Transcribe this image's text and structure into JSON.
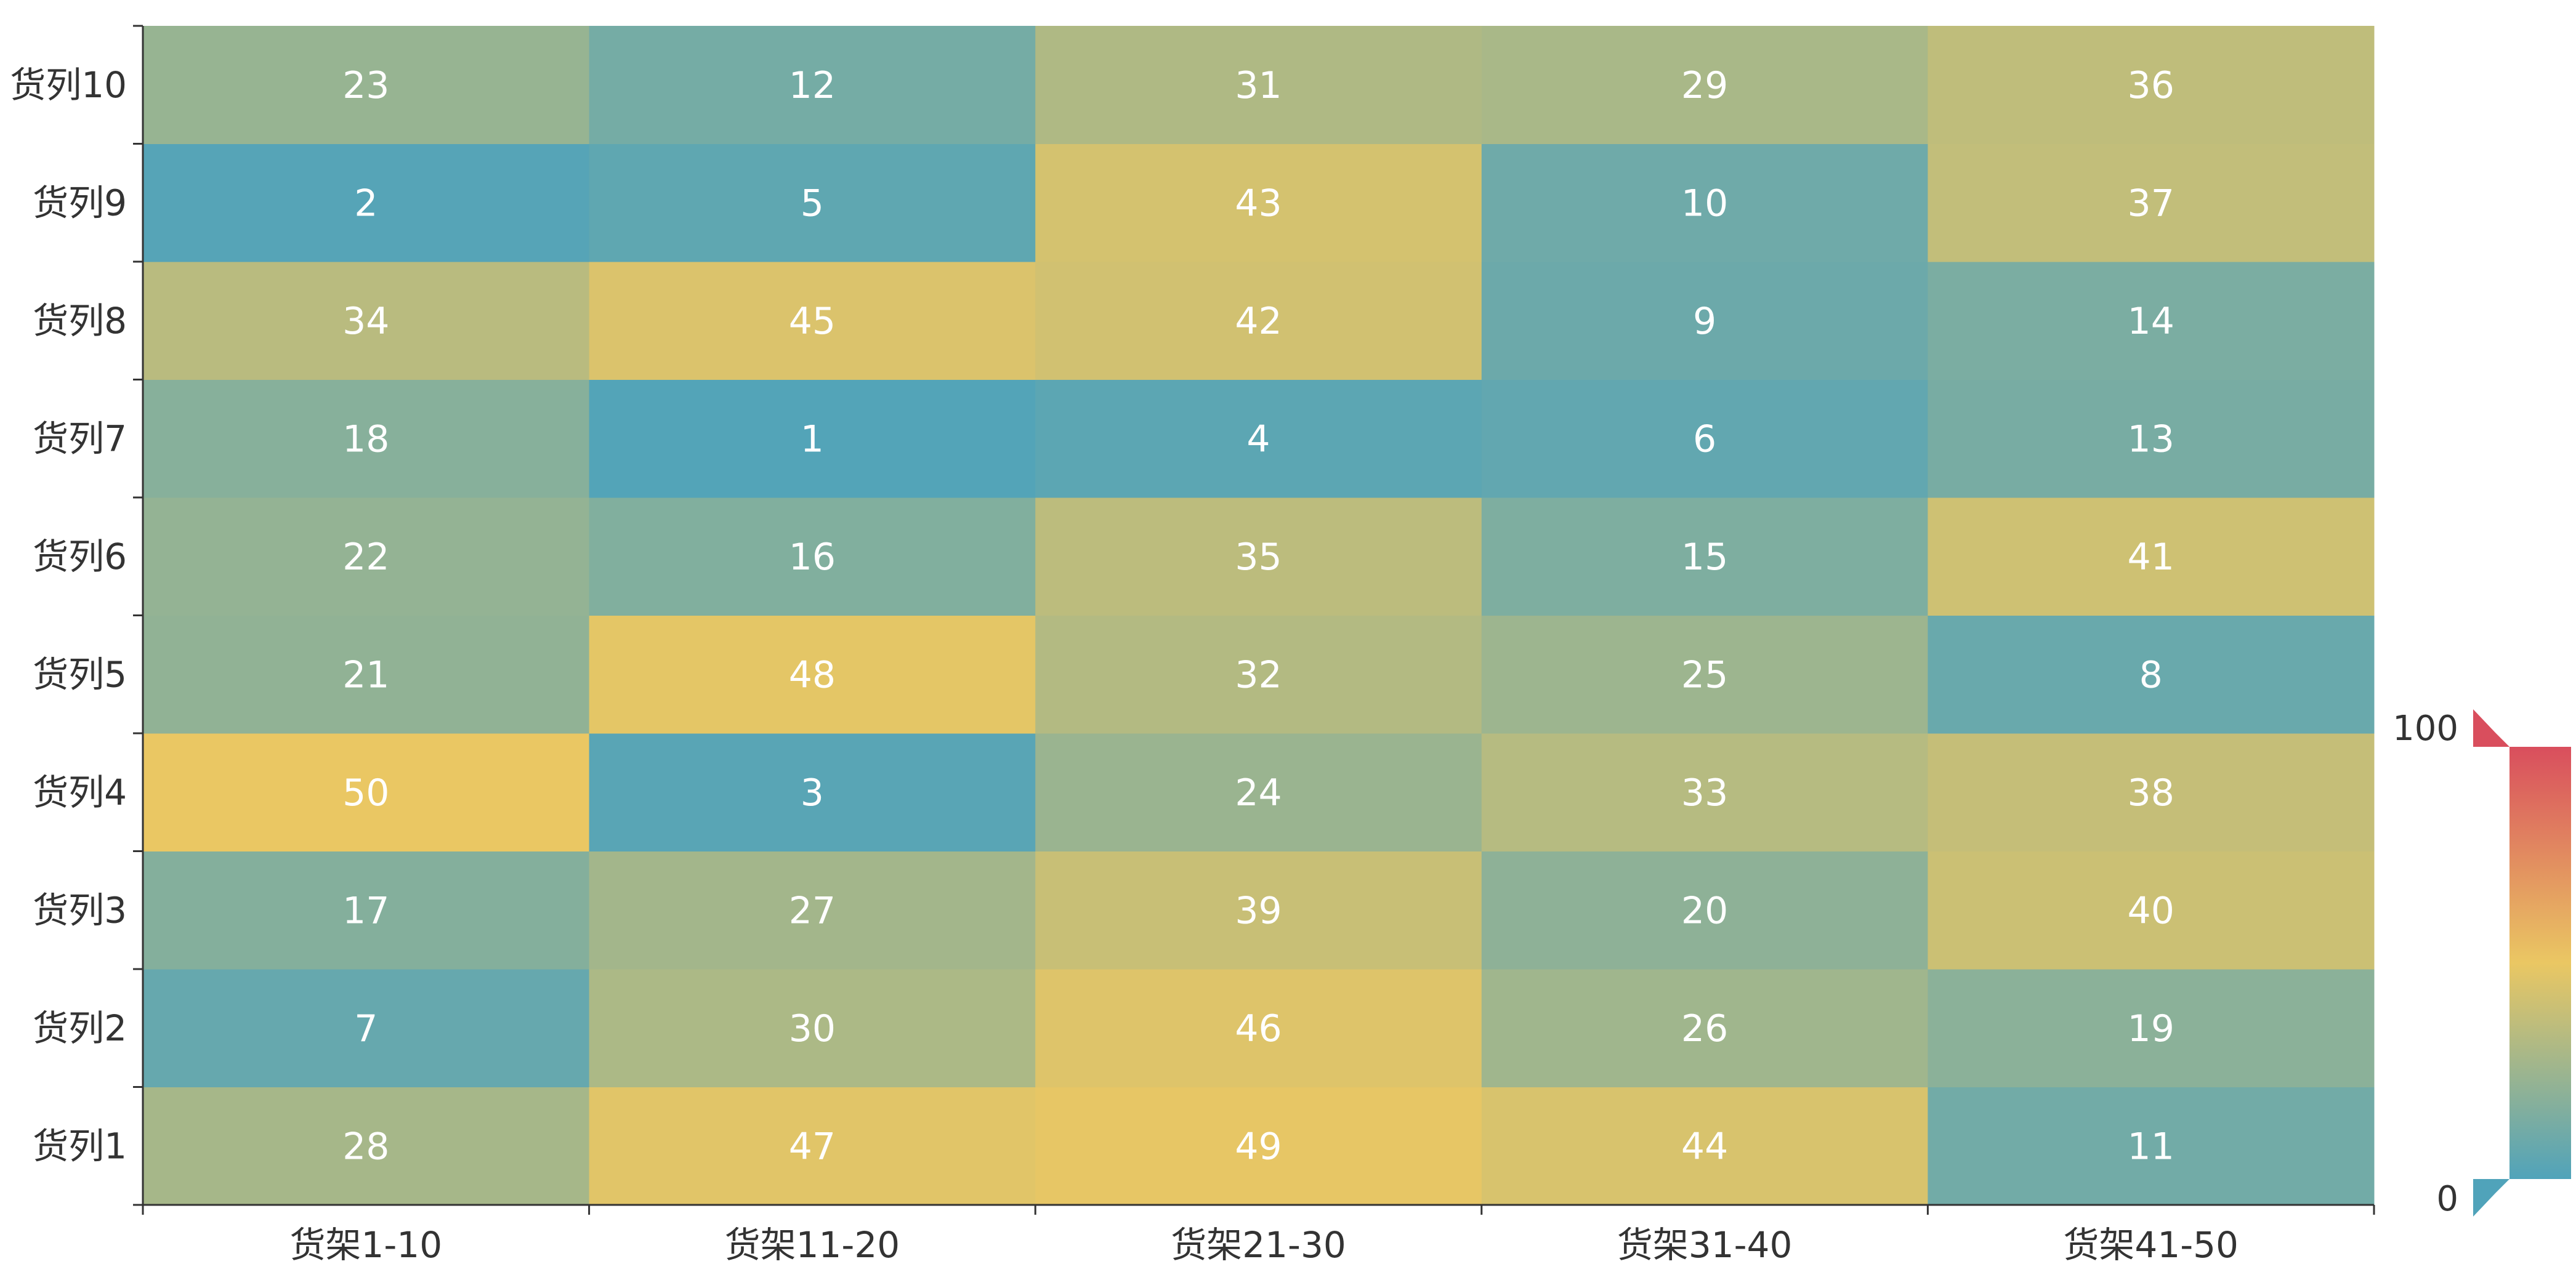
{
  "chart_data": {
    "type": "heatmap",
    "title": "",
    "x_categories": [
      "货架1-10",
      "货架11-20",
      "货架21-30",
      "货架31-40",
      "货架41-50"
    ],
    "y_categories": [
      "货列1",
      "货列2",
      "货列3",
      "货列4",
      "货列5",
      "货列6",
      "货列7",
      "货列8",
      "货列9",
      "货列10"
    ],
    "values": [
      [
        28,
        47,
        49,
        44,
        11
      ],
      [
        7,
        30,
        46,
        26,
        19
      ],
      [
        17,
        27,
        39,
        20,
        40
      ],
      [
        50,
        3,
        24,
        33,
        38
      ],
      [
        21,
        48,
        32,
        25,
        8
      ],
      [
        22,
        16,
        35,
        15,
        41
      ],
      [
        18,
        1,
        4,
        6,
        13
      ],
      [
        34,
        45,
        42,
        9,
        14
      ],
      [
        2,
        5,
        43,
        10,
        37
      ],
      [
        23,
        12,
        31,
        29,
        36
      ]
    ],
    "visual_map": {
      "min": 0,
      "max": 100,
      "min_label": "0",
      "max_label": "100",
      "colors": [
        "#50a3ba",
        "#eac763",
        "#d94e5d"
      ],
      "placement": "right-bottom"
    },
    "grid": false,
    "data_labels": true
  }
}
